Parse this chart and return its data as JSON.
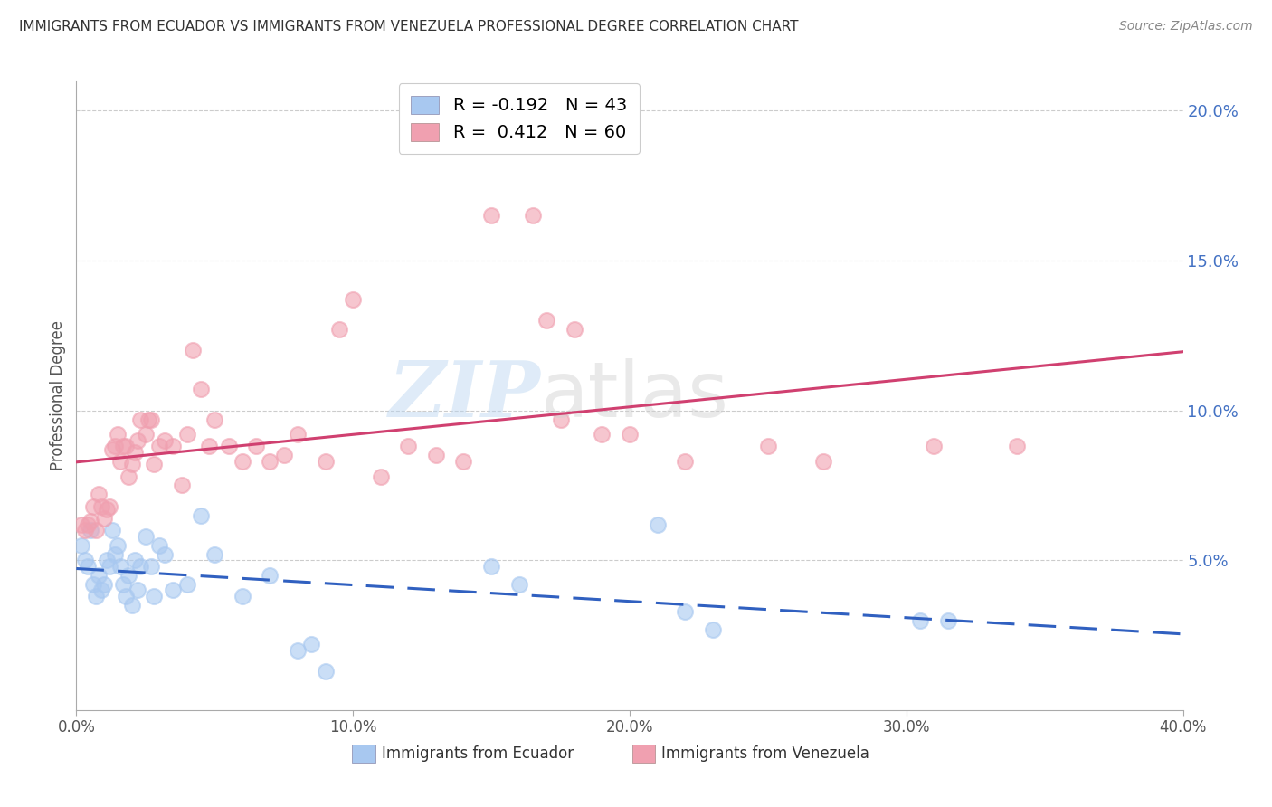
{
  "title": "IMMIGRANTS FROM ECUADOR VS IMMIGRANTS FROM VENEZUELA PROFESSIONAL DEGREE CORRELATION CHART",
  "source": "Source: ZipAtlas.com",
  "ylabel_left": "Professional Degree",
  "xlim": [
    0.0,
    0.4
  ],
  "ylim": [
    0.0,
    0.21
  ],
  "xticks": [
    0.0,
    0.1,
    0.2,
    0.3,
    0.4
  ],
  "xtick_labels": [
    "0.0%",
    "10.0%",
    "20.0%",
    "30.0%",
    "40.0%"
  ],
  "yticks_right": [
    0.05,
    0.1,
    0.15,
    0.2
  ],
  "ytick_labels_right": [
    "5.0%",
    "10.0%",
    "15.0%",
    "20.0%"
  ],
  "R_ecuador": -0.192,
  "N_ecuador": 43,
  "R_venezuela": 0.412,
  "N_venezuela": 60,
  "ecuador_color": "#A8C8F0",
  "venezuela_color": "#F0A0B0",
  "ecuador_line_color": "#3060C0",
  "venezuela_line_color": "#D04070",
  "ecuador_label": "Immigrants from Ecuador",
  "venezuela_label": "Immigrants from Venezuela",
  "ecuador_x": [
    0.002,
    0.003,
    0.004,
    0.005,
    0.006,
    0.007,
    0.008,
    0.009,
    0.01,
    0.011,
    0.012,
    0.013,
    0.014,
    0.015,
    0.016,
    0.017,
    0.018,
    0.019,
    0.02,
    0.021,
    0.022,
    0.023,
    0.025,
    0.027,
    0.028,
    0.03,
    0.032,
    0.035,
    0.04,
    0.045,
    0.05,
    0.06,
    0.07,
    0.08,
    0.085,
    0.09,
    0.15,
    0.16,
    0.21,
    0.22,
    0.23,
    0.305,
    0.315
  ],
  "ecuador_y": [
    0.055,
    0.05,
    0.048,
    0.06,
    0.042,
    0.038,
    0.045,
    0.04,
    0.042,
    0.05,
    0.048,
    0.06,
    0.052,
    0.055,
    0.048,
    0.042,
    0.038,
    0.045,
    0.035,
    0.05,
    0.04,
    0.048,
    0.058,
    0.048,
    0.038,
    0.055,
    0.052,
    0.04,
    0.042,
    0.065,
    0.052,
    0.038,
    0.045,
    0.02,
    0.022,
    0.013,
    0.048,
    0.042,
    0.062,
    0.033,
    0.027,
    0.03,
    0.03
  ],
  "venezuela_x": [
    0.002,
    0.003,
    0.004,
    0.005,
    0.006,
    0.007,
    0.008,
    0.009,
    0.01,
    0.011,
    0.012,
    0.013,
    0.014,
    0.015,
    0.016,
    0.017,
    0.018,
    0.019,
    0.02,
    0.021,
    0.022,
    0.023,
    0.025,
    0.026,
    0.027,
    0.028,
    0.03,
    0.032,
    0.035,
    0.038,
    0.04,
    0.042,
    0.045,
    0.048,
    0.05,
    0.055,
    0.06,
    0.065,
    0.07,
    0.075,
    0.08,
    0.09,
    0.095,
    0.1,
    0.11,
    0.12,
    0.13,
    0.14,
    0.15,
    0.165,
    0.17,
    0.175,
    0.18,
    0.19,
    0.2,
    0.22,
    0.25,
    0.27,
    0.31,
    0.34
  ],
  "venezuela_y": [
    0.062,
    0.06,
    0.062,
    0.063,
    0.068,
    0.06,
    0.072,
    0.068,
    0.064,
    0.067,
    0.068,
    0.087,
    0.088,
    0.092,
    0.083,
    0.088,
    0.088,
    0.078,
    0.082,
    0.086,
    0.09,
    0.097,
    0.092,
    0.097,
    0.097,
    0.082,
    0.088,
    0.09,
    0.088,
    0.075,
    0.092,
    0.12,
    0.107,
    0.088,
    0.097,
    0.088,
    0.083,
    0.088,
    0.083,
    0.085,
    0.092,
    0.083,
    0.127,
    0.137,
    0.078,
    0.088,
    0.085,
    0.083,
    0.165,
    0.165,
    0.13,
    0.097,
    0.127,
    0.092,
    0.092,
    0.083,
    0.088,
    0.083,
    0.088,
    0.088
  ]
}
